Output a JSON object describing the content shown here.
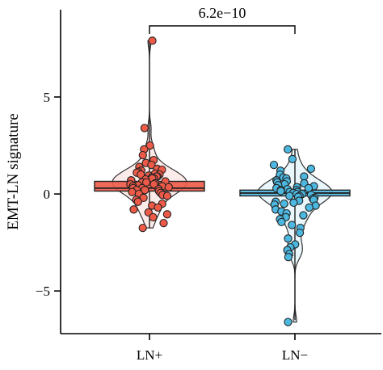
{
  "chart_data": {
    "type": "box-violin-jitter",
    "ylabel": "EMT-LN signature",
    "xlabel": "",
    "categories": [
      "LN+",
      "LN−"
    ],
    "yticks": [
      -5,
      0,
      5
    ],
    "yticklabels": [
      "−5",
      "0",
      "5"
    ],
    "ylim": [
      -7.2,
      9.5
    ],
    "significance": {
      "label": "6.2e−10",
      "between": [
        "LN+",
        "LN−"
      ]
    },
    "series": [
      {
        "category": "LN+",
        "color": "#ee5a48",
        "box": {
          "q1": 0.15,
          "median": 0.3,
          "q3": 0.65,
          "whisker_low": -1.75,
          "whisker_high": 7.9
        },
        "points": [
          7.9,
          3.4,
          2.5,
          2.3,
          2.0,
          1.75,
          1.6,
          1.5,
          1.4,
          1.3,
          1.25,
          1.2,
          1.15,
          1.1,
          1.05,
          1.0,
          1.0,
          0.95,
          0.9,
          0.9,
          0.85,
          0.8,
          0.8,
          0.75,
          0.7,
          0.7,
          0.65,
          0.6,
          0.6,
          0.55,
          0.5,
          0.5,
          0.45,
          0.4,
          0.4,
          0.35,
          0.3,
          0.3,
          0.25,
          0.2,
          0.2,
          0.15,
          0.1,
          0.05,
          0.0,
          -0.05,
          -0.1,
          -0.2,
          -0.3,
          -0.4,
          -0.5,
          -0.6,
          -0.7,
          -0.8,
          -0.95,
          -1.05,
          -1.2,
          -1.5,
          -1.75
        ]
      },
      {
        "category": "LN−",
        "color": "#4cb8e0",
        "box": {
          "q1": -0.1,
          "median": 0.05,
          "q3": 0.2,
          "whisker_low": -6.5,
          "whisker_high": 2.3
        },
        "points": [
          2.3,
          1.8,
          1.5,
          1.3,
          1.2,
          1.0,
          0.9,
          0.85,
          0.8,
          0.7,
          0.65,
          0.6,
          0.55,
          0.5,
          0.45,
          0.4,
          0.35,
          0.3,
          0.3,
          0.25,
          0.2,
          0.2,
          0.15,
          0.1,
          0.1,
          0.05,
          0.0,
          0.0,
          -0.05,
          -0.1,
          -0.1,
          -0.15,
          -0.2,
          -0.25,
          -0.3,
          -0.35,
          -0.4,
          -0.45,
          -0.5,
          -0.55,
          -0.6,
          -0.7,
          -0.8,
          -0.9,
          -1.0,
          -1.1,
          -1.2,
          -1.3,
          -1.45,
          -1.6,
          -1.75,
          -2.0,
          -2.3,
          -2.6,
          -2.75,
          -2.9,
          -3.1,
          -3.25,
          -6.6
        ]
      }
    ]
  }
}
